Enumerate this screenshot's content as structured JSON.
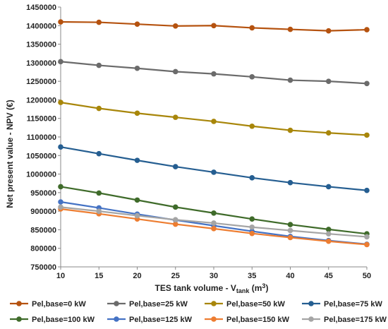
{
  "chart_data": {
    "type": "line",
    "x": [
      10,
      15,
      20,
      25,
      30,
      35,
      40,
      45,
      50
    ],
    "xlim": [
      10,
      50
    ],
    "ylim": [
      750000,
      1450000
    ],
    "xticks": [
      "10",
      "15",
      "20",
      "25",
      "30",
      "35",
      "40",
      "45",
      "50"
    ],
    "yticks": [
      "750000",
      "800000",
      "850000",
      "900000",
      "950000",
      "1000000",
      "1050000",
      "1100000",
      "1150000",
      "1200000",
      "1250000",
      "1300000",
      "1350000",
      "1400000",
      "1450000"
    ],
    "xlabel": {
      "main": "TES tank volume - V",
      "sub": "tank",
      "unit_open": " (m",
      "sup": "3",
      "unit_close": ")"
    },
    "ylabel": "Net present value - NPV (€)",
    "grid": false,
    "legend_placement": "bottom",
    "series": [
      {
        "name": "Pel,base=0 kW",
        "color": "#b5520f",
        "values": [
          1410000,
          1409000,
          1404000,
          1399000,
          1400000,
          1394000,
          1390000,
          1386000,
          1389000
        ]
      },
      {
        "name": "Pel,base=25 kW",
        "color": "#6b6b6b",
        "values": [
          1303000,
          1293000,
          1285000,
          1276000,
          1270000,
          1262000,
          1253000,
          1250000,
          1244000
        ]
      },
      {
        "name": "Pel,base=50 kW",
        "color": "#a8860a",
        "values": [
          1193000,
          1177000,
          1164000,
          1153000,
          1142000,
          1129000,
          1118000,
          1111000,
          1105000
        ]
      },
      {
        "name": "Pel,base=75 kW",
        "color": "#255e91",
        "values": [
          1073000,
          1055000,
          1037000,
          1020000,
          1005000,
          990000,
          977000,
          966000,
          956000
        ]
      },
      {
        "name": "Pel,base=100 kW",
        "color": "#3f6b2a",
        "values": [
          966000,
          949000,
          930000,
          911000,
          895000,
          879000,
          864000,
          851000,
          839000
        ]
      },
      {
        "name": "Pel,base=125 kW",
        "color": "#4472c4",
        "values": [
          925000,
          909000,
          892000,
          876000,
          861000,
          846000,
          832000,
          821000,
          811000
        ]
      },
      {
        "name": "Pel,base=150 kW",
        "color": "#ed7d31",
        "values": [
          906000,
          893000,
          879000,
          865000,
          853000,
          840000,
          829000,
          819000,
          810000
        ]
      },
      {
        "name": "Pel,base=175 kW",
        "color": "#a5a5a5",
        "values": [
          911000,
          900000,
          888000,
          877000,
          868000,
          857000,
          848000,
          839000,
          831000
        ]
      }
    ]
  }
}
